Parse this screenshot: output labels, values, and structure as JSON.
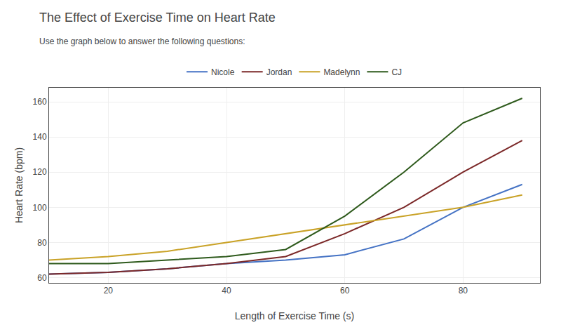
{
  "chart_data": {
    "type": "line",
    "title": "The Effect of Exercise Time on Heart Rate",
    "subtitle": "Use the graph below to answer the following questions:",
    "xlabel": "Length of Exercise Time (s)",
    "ylabel": "Heart Rate (bpm)",
    "x": [
      10,
      20,
      30,
      40,
      50,
      60,
      70,
      80,
      90
    ],
    "series": [
      {
        "name": "Nicole",
        "color": "#4472C4",
        "values": [
          62,
          63,
          65,
          68,
          70,
          73,
          82,
          100,
          113
        ]
      },
      {
        "name": "Jordan",
        "color": "#7B2828",
        "values": [
          62,
          63,
          65,
          68,
          72,
          85,
          100,
          120,
          138
        ]
      },
      {
        "name": "Madelynn",
        "color": "#C9A227",
        "values": [
          70,
          72,
          75,
          80,
          85,
          90,
          95,
          100,
          107
        ]
      },
      {
        "name": "CJ",
        "color": "#2E5A1C",
        "values": [
          68,
          68,
          70,
          72,
          76,
          95,
          120,
          148,
          162
        ]
      }
    ],
    "xlim": [
      10,
      93
    ],
    "ylim": [
      57,
      168
    ],
    "xticks": [
      20,
      40,
      60,
      80
    ],
    "yticks": [
      60,
      80,
      100,
      120,
      140,
      160
    ],
    "grid": true,
    "legend": "top"
  }
}
